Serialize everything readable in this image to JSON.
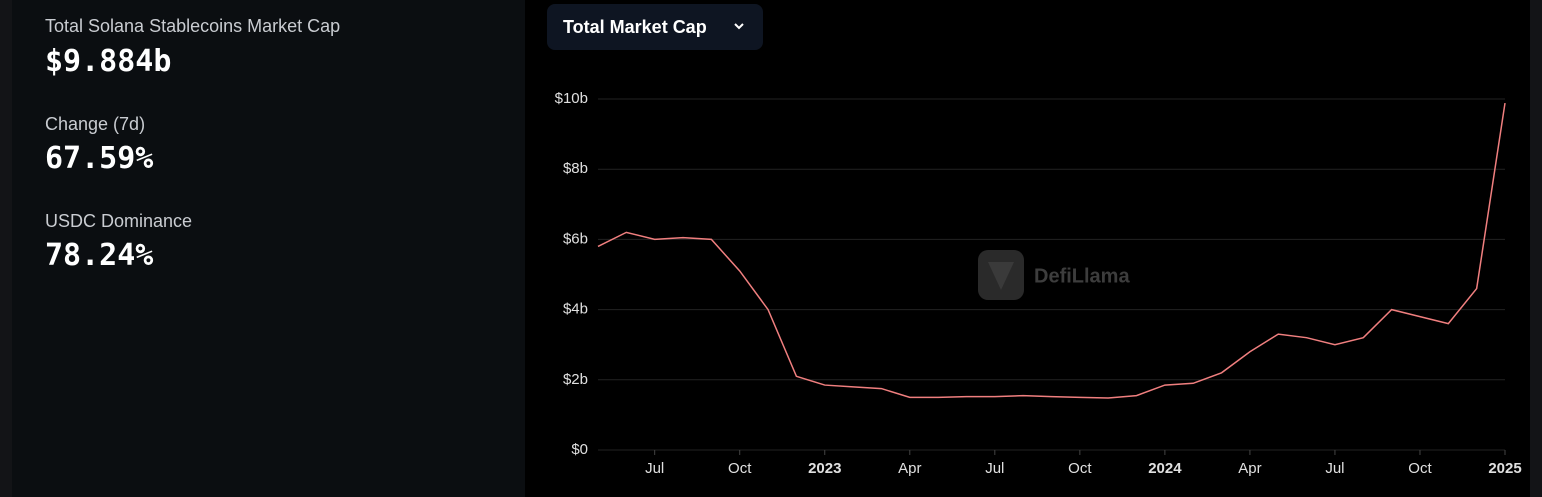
{
  "stats": [
    {
      "label": "Total Solana Stablecoins Market Cap",
      "value": "$9.884b"
    },
    {
      "label": "Change (7d)",
      "value": "67.59%"
    },
    {
      "label": "USDC Dominance",
      "value": "78.24%"
    }
  ],
  "button": "Total Market Cap",
  "watermark": "DefiLlama",
  "chart_data": {
    "type": "line",
    "color": "#f07f7f",
    "x": [
      "2022-05",
      "2022-06",
      "2022-07",
      "2022-08",
      "2022-09",
      "2022-10",
      "2022-11",
      "2022-12",
      "2023-01",
      "2023-02",
      "2023-03",
      "2023-04",
      "2023-05",
      "2023-06",
      "2023-07",
      "2023-08",
      "2023-09",
      "2023-10",
      "2023-11",
      "2023-12",
      "2024-01",
      "2024-02",
      "2024-03",
      "2024-04",
      "2024-05",
      "2024-06",
      "2024-07",
      "2024-08",
      "2024-09",
      "2024-10",
      "2024-11",
      "2024-12",
      "2025-01"
    ],
    "values": [
      5.8,
      6.2,
      6.0,
      6.05,
      6.0,
      5.1,
      4.0,
      2.1,
      1.85,
      1.8,
      1.75,
      1.5,
      1.5,
      1.52,
      1.52,
      1.55,
      1.52,
      1.5,
      1.48,
      1.55,
      1.85,
      1.9,
      2.2,
      2.8,
      3.3,
      3.2,
      3.0,
      3.2,
      4.0,
      3.8,
      3.6,
      4.6,
      9.884
    ],
    "xlim": [
      "2022-05",
      "2025-01"
    ],
    "xticks": [
      {
        "value": "2022-07",
        "label": "Jul"
      },
      {
        "value": "2022-10",
        "label": "Oct"
      },
      {
        "value": "2023-01",
        "label": "2023"
      },
      {
        "value": "2023-04",
        "label": "Apr"
      },
      {
        "value": "2023-07",
        "label": "Jul"
      },
      {
        "value": "2023-10",
        "label": "Oct"
      },
      {
        "value": "2024-01",
        "label": "2024"
      },
      {
        "value": "2024-04",
        "label": "Apr"
      },
      {
        "value": "2024-07",
        "label": "Jul"
      },
      {
        "value": "2024-10",
        "label": "Oct"
      },
      {
        "value": "2025-01",
        "label": "2025"
      }
    ],
    "ylim": [
      0,
      10
    ],
    "yticks": [
      {
        "value": 0,
        "label": "$0"
      },
      {
        "value": 2,
        "label": "$2b"
      },
      {
        "value": 4,
        "label": "$4b"
      },
      {
        "value": 6,
        "label": "$6b"
      },
      {
        "value": 8,
        "label": "$8b"
      },
      {
        "value": 10,
        "label": "$10b"
      }
    ],
    "grid": true
  }
}
